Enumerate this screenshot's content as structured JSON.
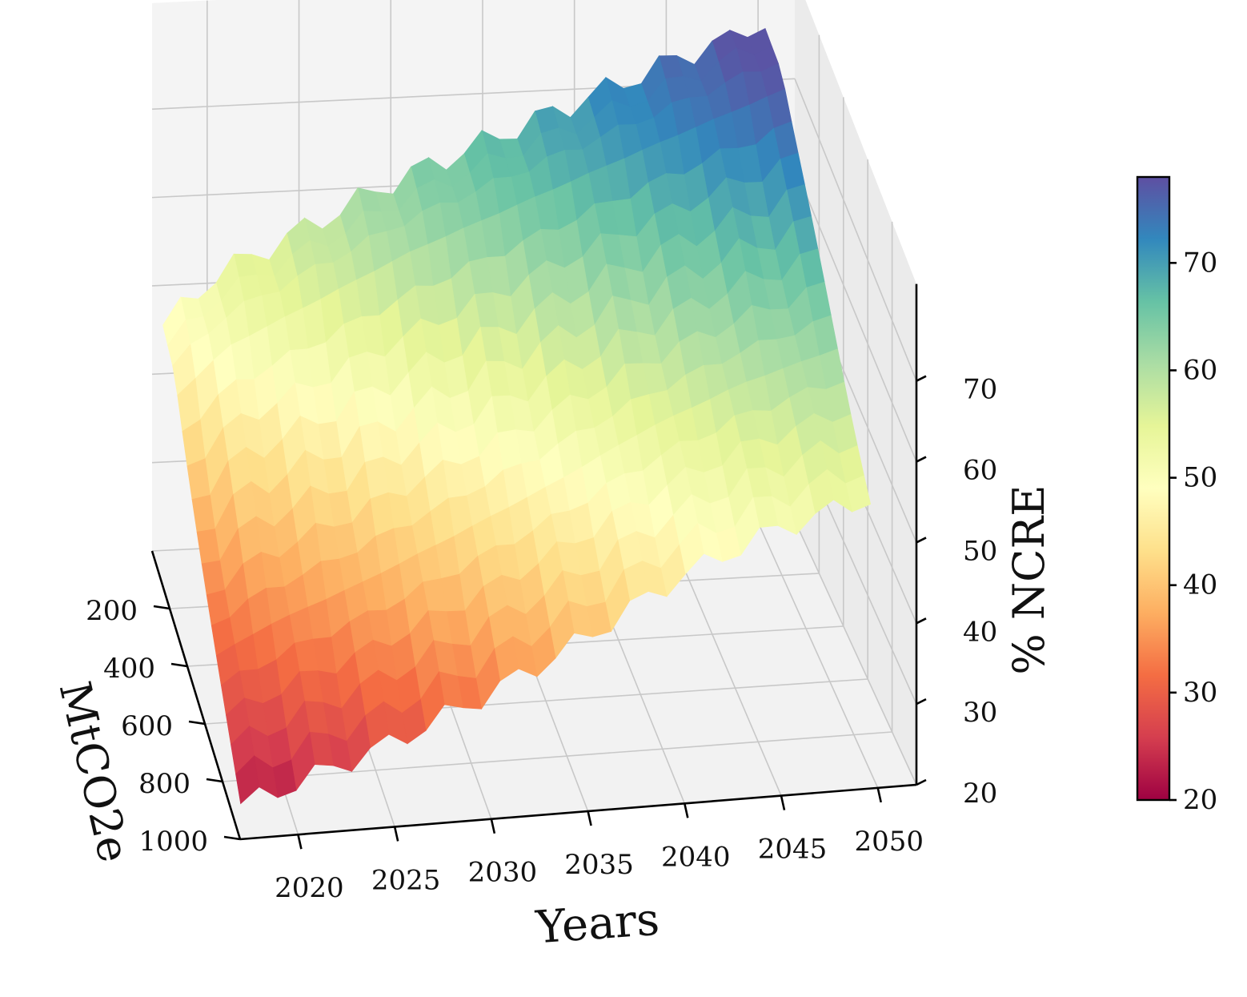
{
  "chart_data": {
    "type": "surface3d",
    "title": "",
    "xlabel": "Years",
    "ylabel": "MtCO2e",
    "zlabel": "% NCRE",
    "x_ticks": [
      "2020",
      "2025",
      "2030",
      "2035",
      "2040",
      "2045",
      "2050"
    ],
    "y_ticks": [
      "200",
      "400",
      "600",
      "800",
      "1000"
    ],
    "z_ticks": [
      "20",
      "30",
      "40",
      "50",
      "60",
      "70"
    ],
    "xlim": [
      2017,
      2052
    ],
    "ylim": [
      0,
      1000
    ],
    "zlim": [
      20,
      78
    ],
    "colormap": "Spectral",
    "colorbar": {
      "min": 20,
      "max": 78,
      "ticks": [
        "20",
        "30",
        "40",
        "50",
        "60",
        "70"
      ]
    },
    "grid": true,
    "surface_summary": {
      "years": [
        2017,
        2020,
        2025,
        2030,
        2035,
        2040,
        2045,
        2050
      ],
      "ncre_at_200_MtCO2e": [
        46,
        52,
        57,
        62,
        66,
        70,
        74,
        78
      ],
      "ncre_at_1000_MtCO2e": [
        20,
        22,
        26,
        31,
        37,
        44,
        49,
        52
      ]
    }
  }
}
